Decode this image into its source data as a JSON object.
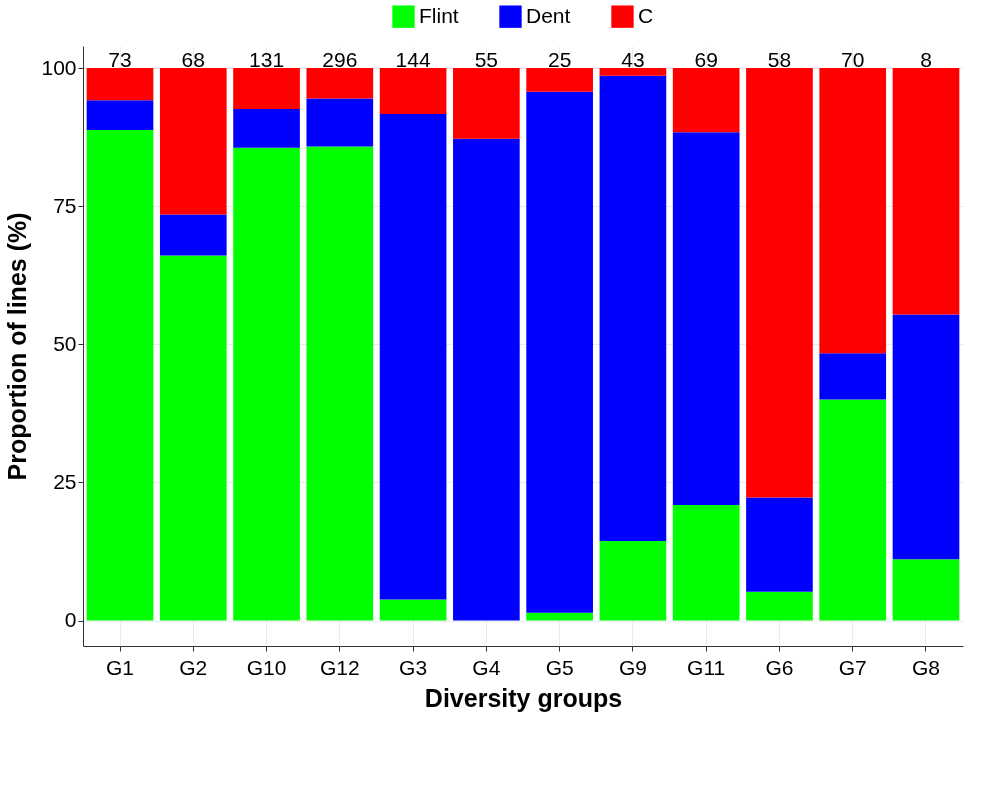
{
  "chart_data": {
    "type": "bar",
    "stacked": true,
    "xlabel": "Diversity groups",
    "ylabel": "Proportion of lines (%)",
    "categories": [
      "G1",
      "G2",
      "G10",
      "G12",
      "G3",
      "G4",
      "G5",
      "G9",
      "G11",
      "G6",
      "G7",
      "G8"
    ],
    "series": [
      {
        "name": "Flint",
        "color": "#00ff00",
        "values": [
          88.8,
          66.1,
          85.6,
          85.8,
          3.8,
          0,
          1.4,
          14.4,
          20.9,
          5.2,
          40.0,
          11.1
        ]
      },
      {
        "name": "Dent",
        "color": "#0000ff",
        "values": [
          5.4,
          7.4,
          7.0,
          8.7,
          87.9,
          87.2,
          94.3,
          84.2,
          67.5,
          17.1,
          8.4,
          44.3
        ]
      },
      {
        "name": "C",
        "color": "#ff0000",
        "values": [
          5.8,
          26.5,
          7.4,
          5.5,
          8.3,
          12.8,
          4.3,
          1.4,
          11.6,
          77.7,
          51.6,
          44.6
        ]
      }
    ],
    "annotations": [
      {
        "text": "73",
        "x": "G1",
        "y": 100
      },
      {
        "text": "68",
        "x": "G2",
        "y": 100
      },
      {
        "text": "131",
        "x": "G10",
        "y": 100
      },
      {
        "text": "296",
        "x": "G12",
        "y": 100
      },
      {
        "text": "144",
        "x": "G3",
        "y": 100
      },
      {
        "text": "55",
        "x": "G4",
        "y": 100
      },
      {
        "text": "25",
        "x": "G5",
        "y": 100
      },
      {
        "text": "43",
        "x": "G9",
        "y": 100
      },
      {
        "text": "69",
        "x": "G11",
        "y": 100
      },
      {
        "text": "58",
        "x": "G6",
        "y": 100
      },
      {
        "text": "70",
        "x": "G7",
        "y": 100
      },
      {
        "text": "8",
        "x": "G8",
        "y": 100
      }
    ],
    "ylim": [
      -4.6,
      104
    ],
    "yticks": [
      0,
      25,
      50,
      75,
      100
    ],
    "grid": true,
    "legend": "top"
  }
}
